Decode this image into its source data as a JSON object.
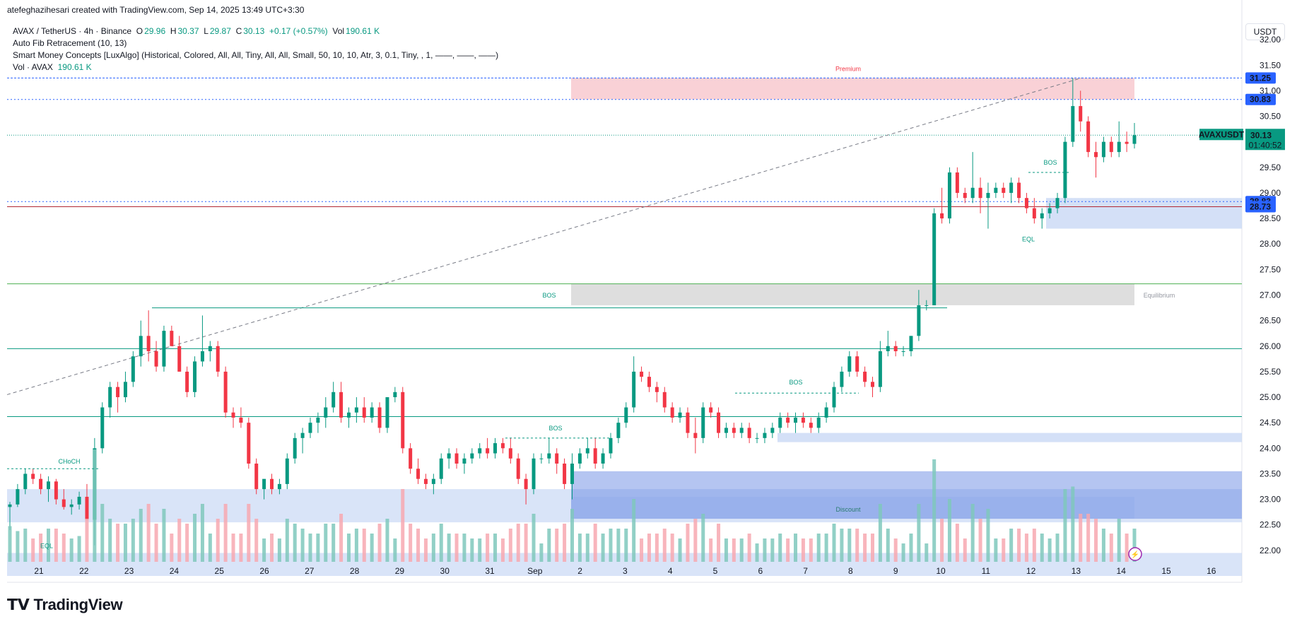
{
  "credit": "atefeghazihesari created with TradingView.com, Sep 14, 2025 13:49 UTC+3:30",
  "legend": {
    "symbol": "AVAX / TetherUS · 4h · Binance",
    "o_label": "O",
    "o": "29.96",
    "h_label": "H",
    "h": "30.37",
    "l_label": "L",
    "l": "29.87",
    "c_label": "C",
    "c": "30.13",
    "change": "+0.17 (+0.57%)",
    "vol_label": "Vol",
    "vol": "190.61 K",
    "fib": "Auto Fib Retracement (10, 13)",
    "smc": "Smart Money Concepts [LuxAlgo] (Historical, Colored, All, All, Tiny, All, All, Small, 50, 10, 10, Atr, 3, 0.1, Tiny, , 1, ——, ——, ——)",
    "vol_row_label": "Vol · AVAX",
    "vol_row_value": "190.61 K"
  },
  "currency": "USDT",
  "logo": "TradingView",
  "chart_data": {
    "type": "candlestick",
    "symbol": "AVAXUSDT",
    "timeframe": "4h",
    "y_axis": {
      "min": 21.5,
      "max": 32.5,
      "ticks": [
        "32.00",
        "31.50",
        "31.00",
        "30.50",
        "30.00",
        "29.50",
        "29.00",
        "28.50",
        "28.00",
        "27.50",
        "27.00",
        "26.50",
        "26.00",
        "25.50",
        "25.00",
        "24.50",
        "24.00",
        "23.50",
        "23.00",
        "22.50",
        "22.00"
      ]
    },
    "x_axis": {
      "ticks": [
        "21",
        "22",
        "23",
        "24",
        "25",
        "26",
        "27",
        "28",
        "29",
        "30",
        "31",
        "Sep",
        "2",
        "3",
        "4",
        "5",
        "6",
        "7",
        "8",
        "9",
        "10",
        "11",
        "12",
        "13",
        "14",
        "15",
        "16"
      ]
    },
    "price_labels": [
      {
        "value": "31.25",
        "color": "#2962ff"
      },
      {
        "value": "30.83",
        "color": "#2962ff"
      },
      {
        "value": "28.83",
        "color": "#2962ff"
      },
      {
        "value": "28.73",
        "color": "#2962ff"
      }
    ],
    "last_price": {
      "symbol": "AVAXUSDT",
      "value": "30.13",
      "countdown": "01:40:52",
      "color": "#089981"
    },
    "zones": [
      {
        "label": "Premium",
        "from": 30.83,
        "to": 31.25,
        "color": "#f7c5cc"
      },
      {
        "label": "Equilibrium",
        "from": 26.8,
        "to": 27.22,
        "color": "#d6d6d6"
      },
      {
        "label": "Discount",
        "from": 22.62,
        "to": 23.05,
        "color": "#c9d8f5"
      }
    ],
    "structure_labels": [
      "CHoCH",
      "EQL",
      "BOS",
      "BOS",
      "BOS",
      "BOS",
      "EQL"
    ],
    "candles": [
      [
        22.85,
        22.95,
        22.4,
        22.9
      ],
      [
        22.9,
        23.3,
        22.85,
        23.2
      ],
      [
        23.2,
        23.6,
        23.1,
        23.5
      ],
      [
        23.5,
        23.6,
        23.3,
        23.4
      ],
      [
        23.4,
        23.5,
        23.1,
        23.2
      ],
      [
        23.2,
        23.45,
        22.95,
        23.35
      ],
      [
        23.35,
        23.4,
        22.9,
        23.0
      ],
      [
        23.0,
        23.2,
        22.8,
        22.85
      ],
      [
        22.85,
        23.0,
        22.7,
        22.9
      ],
      [
        22.9,
        23.15,
        22.8,
        23.05
      ],
      [
        23.05,
        23.3,
        22.6,
        22.6
      ],
      [
        22.6,
        24.2,
        22.1,
        24.0
      ],
      [
        24.0,
        24.9,
        23.9,
        24.8
      ],
      [
        24.8,
        25.3,
        24.6,
        25.2
      ],
      [
        25.2,
        25.3,
        24.7,
        25.0
      ],
      [
        25.0,
        25.5,
        24.9,
        25.3
      ],
      [
        25.3,
        25.9,
        25.2,
        25.8
      ],
      [
        25.8,
        26.5,
        25.6,
        26.2
      ],
      [
        26.2,
        26.7,
        25.7,
        25.9
      ],
      [
        25.9,
        26.1,
        25.5,
        25.6
      ],
      [
        25.6,
        26.4,
        25.5,
        26.3
      ],
      [
        26.3,
        26.4,
        26.0,
        26.0
      ],
      [
        26.0,
        26.2,
        25.5,
        25.5
      ],
      [
        25.5,
        25.6,
        25.0,
        25.1
      ],
      [
        25.1,
        25.8,
        25.0,
        25.7
      ],
      [
        25.7,
        26.6,
        25.6,
        25.9
      ],
      [
        25.9,
        26.1,
        25.7,
        26.0
      ],
      [
        26.0,
        26.1,
        25.4,
        25.5
      ],
      [
        25.5,
        25.6,
        24.6,
        24.7
      ],
      [
        24.7,
        24.8,
        24.4,
        24.6
      ],
      [
        24.6,
        24.8,
        24.4,
        24.5
      ],
      [
        24.5,
        24.6,
        23.6,
        23.7
      ],
      [
        23.7,
        23.8,
        23.1,
        23.2
      ],
      [
        23.2,
        23.3,
        23.0,
        23.4
      ],
      [
        23.4,
        23.5,
        23.1,
        23.2
      ],
      [
        23.2,
        23.4,
        23.1,
        23.3
      ],
      [
        23.3,
        23.9,
        23.2,
        23.8
      ],
      [
        23.8,
        24.3,
        23.7,
        24.2
      ],
      [
        24.2,
        24.4,
        23.9,
        24.3
      ],
      [
        24.3,
        24.6,
        24.2,
        24.5
      ],
      [
        24.5,
        24.7,
        24.3,
        24.6
      ],
      [
        24.6,
        25.0,
        24.4,
        24.8
      ],
      [
        24.8,
        25.3,
        24.7,
        25.1
      ],
      [
        25.1,
        25.3,
        24.5,
        24.6
      ],
      [
        24.6,
        24.8,
        24.4,
        24.7
      ],
      [
        24.7,
        25.0,
        24.5,
        24.8
      ],
      [
        24.8,
        25.0,
        24.5,
        24.6
      ],
      [
        24.6,
        24.9,
        24.5,
        24.8
      ],
      [
        24.8,
        24.9,
        24.3,
        24.4
      ],
      [
        24.4,
        25.0,
        24.3,
        25.0
      ],
      [
        25.0,
        25.2,
        24.9,
        25.1
      ],
      [
        25.1,
        25.2,
        23.9,
        24.0
      ],
      [
        24.0,
        24.1,
        23.5,
        23.6
      ],
      [
        23.6,
        23.8,
        23.3,
        23.4
      ],
      [
        23.4,
        23.5,
        23.2,
        23.3
      ],
      [
        23.3,
        23.5,
        23.1,
        23.4
      ],
      [
        23.4,
        23.9,
        23.3,
        23.8
      ],
      [
        23.8,
        24.0,
        23.6,
        23.9
      ],
      [
        23.9,
        24.0,
        23.6,
        23.7
      ],
      [
        23.7,
        23.9,
        23.5,
        23.8
      ],
      [
        23.8,
        24.0,
        23.7,
        23.9
      ],
      [
        23.9,
        24.1,
        23.8,
        24.0
      ],
      [
        24.0,
        24.2,
        23.8,
        23.9
      ],
      [
        23.9,
        24.2,
        23.8,
        24.1
      ],
      [
        24.1,
        24.2,
        23.9,
        24.0
      ],
      [
        24.0,
        24.2,
        23.7,
        23.8
      ],
      [
        23.8,
        23.9,
        23.3,
        23.4
      ],
      [
        23.4,
        23.5,
        22.9,
        23.2
      ],
      [
        23.2,
        23.9,
        23.1,
        23.8
      ],
      [
        23.8,
        23.9,
        23.7,
        23.8
      ],
      [
        23.8,
        24.2,
        23.7,
        23.9
      ],
      [
        23.9,
        24.0,
        23.5,
        23.7
      ],
      [
        23.7,
        23.8,
        23.2,
        23.3
      ],
      [
        23.3,
        23.9,
        23.0,
        23.7
      ],
      [
        23.7,
        24.0,
        23.6,
        23.9
      ],
      [
        23.9,
        24.2,
        23.8,
        24.0
      ],
      [
        24.0,
        24.2,
        23.6,
        23.7
      ],
      [
        23.7,
        24.0,
        23.6,
        23.9
      ],
      [
        23.9,
        24.3,
        23.8,
        24.2
      ],
      [
        24.2,
        24.6,
        24.1,
        24.5
      ],
      [
        24.5,
        24.9,
        24.4,
        24.8
      ],
      [
        24.8,
        25.8,
        24.7,
        25.5
      ],
      [
        25.5,
        25.6,
        25.3,
        25.4
      ],
      [
        25.4,
        25.5,
        25.1,
        25.2
      ],
      [
        25.2,
        25.3,
        24.9,
        25.1
      ],
      [
        25.1,
        25.2,
        24.7,
        24.8
      ],
      [
        24.8,
        24.9,
        24.5,
        24.6
      ],
      [
        24.6,
        24.8,
        24.5,
        24.7
      ],
      [
        24.7,
        24.8,
        24.2,
        24.3
      ],
      [
        24.3,
        24.6,
        23.9,
        24.2
      ],
      [
        24.2,
        24.9,
        24.1,
        24.8
      ],
      [
        24.8,
        24.9,
        24.6,
        24.7
      ],
      [
        24.7,
        24.8,
        24.2,
        24.3
      ],
      [
        24.3,
        24.5,
        24.2,
        24.4
      ],
      [
        24.4,
        24.5,
        24.2,
        24.3
      ],
      [
        24.3,
        24.5,
        24.2,
        24.4
      ],
      [
        24.4,
        24.5,
        24.1,
        24.2
      ],
      [
        24.2,
        24.3,
        24.1,
        24.2
      ],
      [
        24.2,
        24.4,
        24.1,
        24.3
      ],
      [
        24.3,
        24.5,
        24.2,
        24.4
      ],
      [
        24.4,
        24.7,
        24.3,
        24.6
      ],
      [
        24.6,
        24.7,
        24.4,
        24.5
      ],
      [
        24.5,
        24.7,
        24.3,
        24.6
      ],
      [
        24.6,
        24.7,
        24.4,
        24.5
      ],
      [
        24.5,
        24.6,
        24.3,
        24.4
      ],
      [
        24.4,
        24.7,
        24.3,
        24.6
      ],
      [
        24.6,
        24.9,
        24.5,
        24.8
      ],
      [
        24.8,
        25.3,
        24.7,
        25.2
      ],
      [
        25.2,
        25.6,
        25.1,
        25.5
      ],
      [
        25.5,
        25.9,
        25.4,
        25.8
      ],
      [
        25.8,
        25.9,
        25.4,
        25.5
      ],
      [
        25.5,
        25.6,
        25.2,
        25.3
      ],
      [
        25.3,
        25.4,
        25.0,
        25.2
      ],
      [
        25.2,
        26.1,
        25.1,
        25.9
      ],
      [
        25.9,
        26.3,
        25.8,
        26.0
      ],
      [
        26.0,
        26.1,
        25.8,
        25.9
      ],
      [
        25.9,
        26.0,
        25.8,
        25.9
      ],
      [
        25.9,
        26.2,
        25.8,
        26.2
      ],
      [
        26.2,
        27.1,
        26.1,
        26.8
      ],
      [
        26.8,
        26.9,
        26.7,
        26.8
      ],
      [
        26.8,
        28.7,
        26.8,
        28.6
      ],
      [
        28.6,
        29.1,
        28.4,
        28.5
      ],
      [
        28.5,
        29.5,
        28.4,
        29.4
      ],
      [
        29.4,
        29.5,
        28.9,
        29.0
      ],
      [
        29.0,
        29.1,
        28.8,
        28.9
      ],
      [
        28.9,
        29.8,
        28.8,
        29.1
      ],
      [
        29.1,
        29.3,
        28.6,
        28.9
      ],
      [
        28.9,
        29.2,
        28.3,
        29.0
      ],
      [
        29.0,
        29.2,
        28.9,
        29.1
      ],
      [
        29.1,
        29.2,
        28.9,
        29.0
      ],
      [
        29.0,
        29.3,
        28.8,
        29.2
      ],
      [
        29.2,
        29.3,
        28.8,
        28.9
      ],
      [
        28.9,
        29.0,
        28.6,
        28.7
      ],
      [
        28.7,
        28.9,
        28.4,
        28.5
      ],
      [
        28.5,
        28.7,
        28.3,
        28.6
      ],
      [
        28.6,
        28.8,
        28.5,
        28.7
      ],
      [
        28.7,
        29.0,
        28.6,
        28.9
      ],
      [
        28.9,
        30.1,
        28.8,
        30.0
      ],
      [
        30.0,
        31.25,
        29.9,
        30.7
      ],
      [
        30.7,
        31.0,
        30.2,
        30.4
      ],
      [
        30.4,
        30.5,
        29.7,
        29.8
      ],
      [
        29.8,
        30.0,
        29.3,
        29.7
      ],
      [
        29.7,
        30.1,
        29.6,
        30.0
      ],
      [
        30.0,
        30.1,
        29.7,
        29.8
      ],
      [
        29.8,
        30.4,
        29.7,
        30.0
      ],
      [
        30.0,
        30.2,
        29.8,
        29.96
      ],
      [
        29.96,
        30.37,
        29.87,
        30.13
      ]
    ]
  }
}
